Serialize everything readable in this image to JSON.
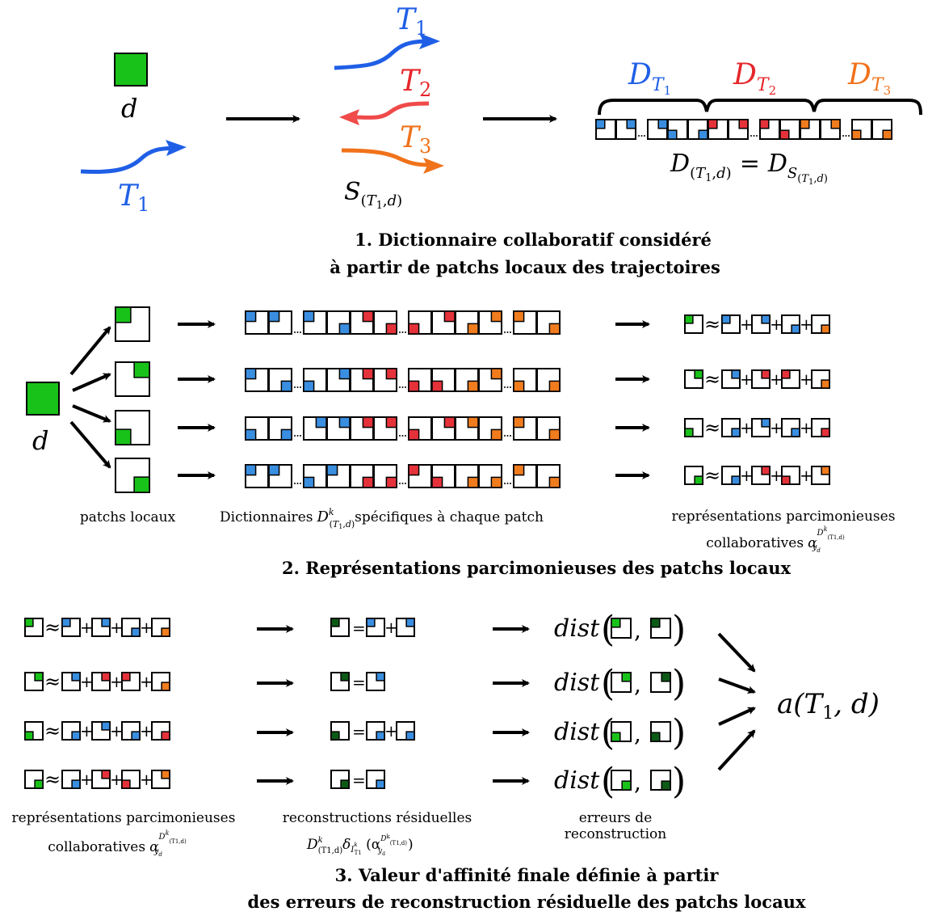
{
  "colors": {
    "blue": "#1f5fe6",
    "red": "#e6262b",
    "orange": "#f0721a",
    "patch_blue": "#3a8ee0",
    "patch_red": "#e5323a",
    "patch_orange": "#f07c1e",
    "green": "#19c219",
    "dark_green": "#0c5a16",
    "black": "#000000"
  },
  "section1": {
    "d_label": "d",
    "T1_label": "T",
    "T1_sub": "1",
    "T2_label": "T",
    "T2_sub": "2",
    "T3_label": "T",
    "T3_sub": "3",
    "S_label": "S",
    "S_sub": "(T1,d)",
    "DT1": "D",
    "DT1_sub": "T1",
    "DT2": "D",
    "DT2_sub": "T2",
    "DT3": "D",
    "DT3_sub": "T3",
    "equation_left": "D",
    "equation_left_sub": "(T1,d)",
    "equation_eq": "=",
    "equation_right": "D",
    "equation_right_sub": "S(T1,d)",
    "caption_line1": "1. Dictionnaire collaboratif considéré",
    "caption_line2": "à partir de patchs locaux des trajectoires"
  },
  "section2": {
    "d_label": "d",
    "label_patches": "patchs locaux",
    "label_dict_prefix": "Dictionnaires",
    "label_dict_D": "D",
    "label_dict_sup": "k",
    "label_dict_sub": "(T1,d)",
    "label_dict_suffix": "spécifiques à chaque patch",
    "label_repr_line1": "représentations parcimonieuses",
    "label_repr_line2": "collaboratives",
    "label_repr_alpha": "α",
    "approx": "≈",
    "plus": "+",
    "caption": "2. Représentations parcimonieuses des patchs locaux"
  },
  "section3": {
    "approx": "≈",
    "plus": "+",
    "equals": "=",
    "dist": "dist",
    "comma": ",",
    "affinity": "a(T",
    "affinity_sub": "1",
    "affinity_end": ", d)",
    "label_repr_line1": "représentations parcimonieuses",
    "label_repr_line2": "collaboratives",
    "label_repr_alpha": "α",
    "label_recon_line1": "reconstructions résiduelles",
    "label_recon_formula": "D",
    "label_err_line1": "erreurs de",
    "label_err_line2": "reconstruction",
    "caption_line1": "3. Valeur d'affinité finale définie à partir",
    "caption_line2": "des erreurs de reconstruction résiduelle des patchs locaux"
  },
  "diagram": {
    "dict_strip_rows": [
      [
        "bTL",
        "bTL",
        "gap",
        "bTL",
        "bBR",
        "rTR",
        "rBR",
        "gap",
        "rBL",
        "rTR",
        "oBR",
        "oTR",
        "gap",
        "oTL",
        "oBR"
      ],
      [
        "bTL",
        "bBR",
        "gap",
        "bBL",
        "bTR",
        "rTR",
        "rTR",
        "gap",
        "rBL",
        "rBL",
        "oBR",
        "oTR",
        "gap",
        "oBL",
        "oBR"
      ],
      [
        "bBL",
        "bBR",
        "gap",
        "bTR",
        "bTR",
        "rTR",
        "rTR",
        "gap",
        "rBL",
        "rTR",
        "oTR",
        "oBR",
        "gap",
        "oTL",
        "oBR"
      ],
      [
        "bTL",
        "bTL",
        "gap",
        "bBL",
        "bTL",
        "rBR",
        "rBR",
        "gap",
        "rTL",
        "rBL",
        "oBR",
        "oBR",
        "gap",
        "oTL",
        "oBR"
      ]
    ],
    "approx_terms_rows": [
      [
        "gTL",
        "bTL",
        "bTR",
        "bBR",
        "oBR"
      ],
      [
        "gTR",
        "bTR",
        "rTR",
        "rTL",
        "oBR"
      ],
      [
        "gBL",
        "bBR",
        "bTR",
        "bBR",
        "rBR"
      ],
      [
        "gBR",
        "bBR",
        "rTR",
        "rBL",
        "oTR"
      ]
    ],
    "recon_rows": [
      [
        "dTL",
        "bTL",
        "bTR"
      ],
      [
        "dTR",
        "bTR"
      ],
      [
        "dBL",
        "bBR",
        "bBR"
      ],
      [
        "dBR",
        "bBR"
      ]
    ]
  }
}
